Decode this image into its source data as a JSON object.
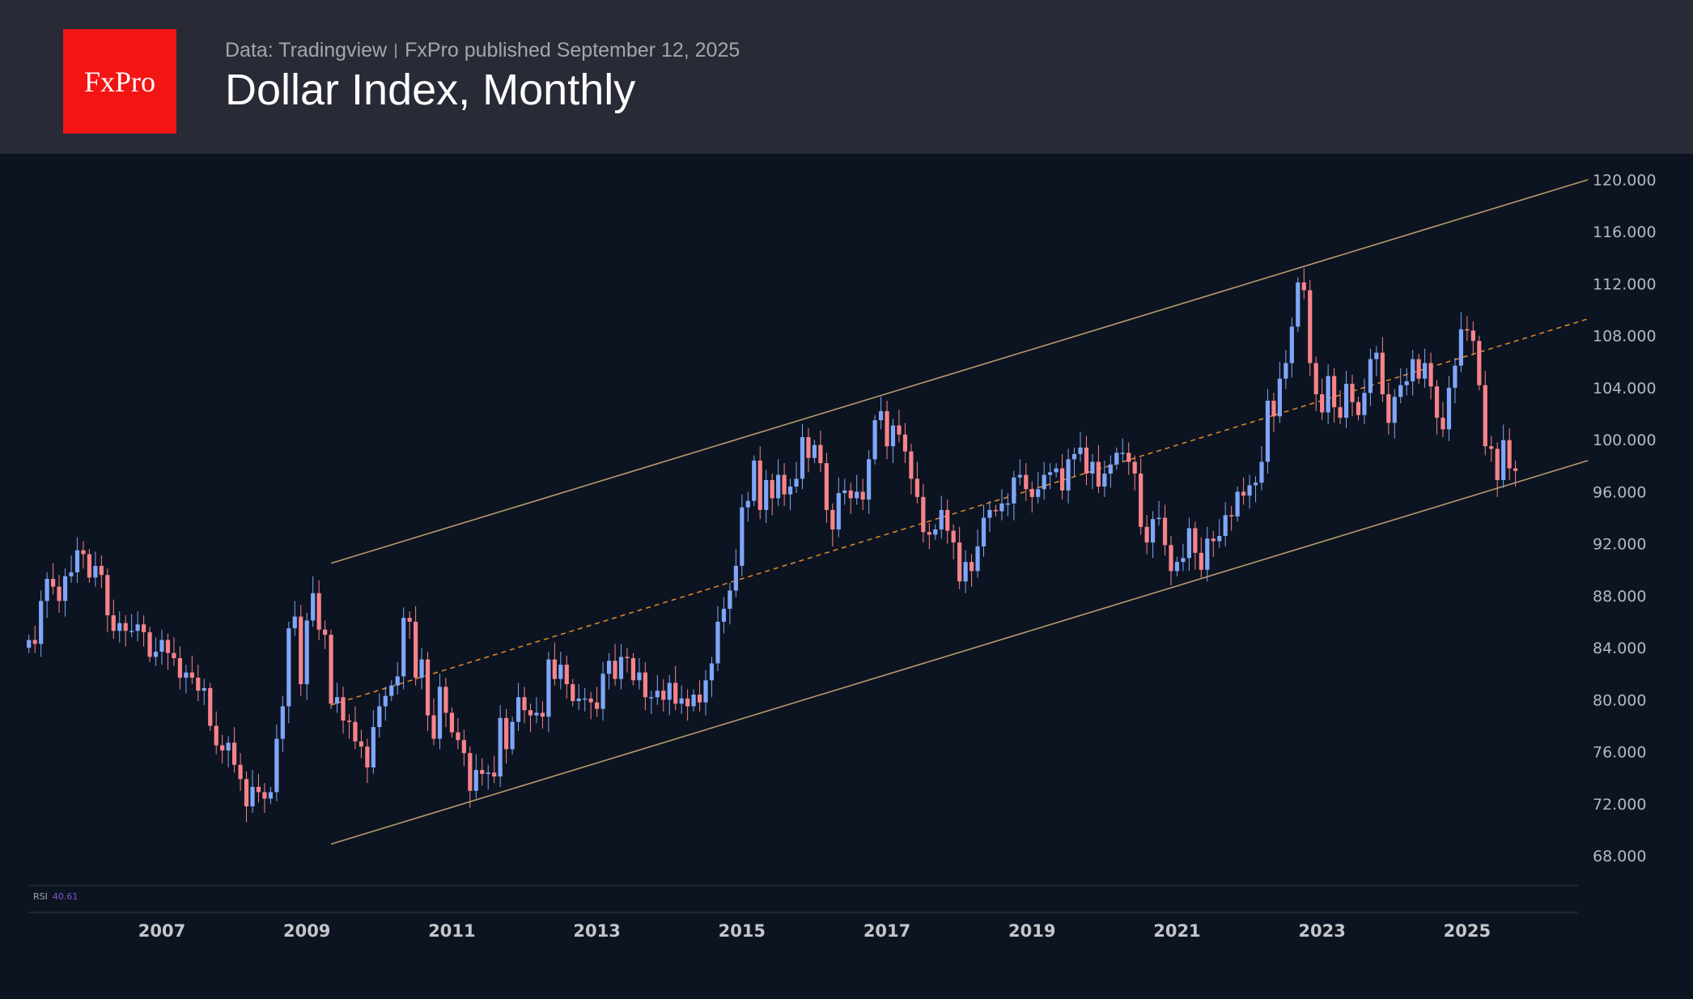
{
  "header": {
    "logo_text": "FxPro",
    "source": "Data: Tradingview",
    "published": "FxPro published September 12, 2025",
    "title": "Dollar Index, Monthly"
  },
  "indicator": {
    "name": "RSI",
    "value": "40.61"
  },
  "colors": {
    "up": "#7fa6f8",
    "down": "#f7838a",
    "channel": "#b8996c",
    "midline": "#d9852c",
    "background": "#0d1421"
  },
  "chart_data": {
    "type": "candlestick",
    "title": "Dollar Index, Monthly",
    "start_month": "2005-03",
    "interval": "monthly",
    "ylim": [
      66,
      121
    ],
    "yticks": [
      "120.000",
      "116.000",
      "112.000",
      "108.000",
      "104.000",
      "100.000",
      "96.000",
      "92.000",
      "88.000",
      "84.000",
      "80.000",
      "76.000",
      "72.000",
      "68.000"
    ],
    "xticks": [
      "2007",
      "2009",
      "2011",
      "2013",
      "2015",
      "2017",
      "2019",
      "2021",
      "2023",
      "2025"
    ],
    "closes": [
      84.6,
      84.3,
      87.6,
      89.3,
      88.7,
      87.6,
      89.5,
      89.8,
      91.5,
      91.2,
      89.4,
      90.3,
      89.6,
      86.5,
      85.3,
      85.9,
      85.3,
      85.3,
      85.8,
      85.2,
      83.3,
      83.7,
      84.6,
      83.6,
      83.2,
      81.7,
      82.1,
      81.7,
      80.7,
      80.9,
      78.0,
      76.5,
      76.1,
      76.7,
      75.0,
      73.9,
      71.8,
      73.3,
      72.9,
      72.4,
      72.9,
      77.0,
      79.5,
      85.5,
      86.4,
      81.2,
      86.1,
      88.2,
      85.4,
      85.0,
      79.7,
      80.2,
      78.4,
      78.3,
      76.8,
      76.4,
      74.8,
      77.9,
      79.5,
      80.3,
      81.1,
      81.8,
      86.3,
      86.0,
      81.7,
      83.1,
      78.8,
      77.0,
      81.0,
      79.0,
      77.5,
      76.9,
      75.9,
      73.0,
      74.6,
      74.3,
      74.4,
      74.1,
      78.6,
      76.2,
      78.3,
      80.2,
      79.2,
      78.8,
      79.0,
      78.7,
      83.1,
      81.6,
      82.7,
      81.2,
      79.9,
      80.1,
      80.1,
      79.8,
      79.3,
      82.0,
      83.0,
      81.6,
      83.3,
      83.2,
      81.5,
      82.1,
      80.2,
      80.2,
      80.7,
      80.0,
      81.3,
      79.7,
      80.1,
      79.5,
      80.4,
      79.8,
      81.5,
      82.8,
      86.0,
      87.0,
      88.4,
      90.3,
      94.8,
      95.3,
      98.4,
      94.6,
      96.9,
      95.5,
      97.3,
      95.8,
      96.4,
      97.0,
      100.2,
      98.6,
      99.6,
      98.2,
      94.6,
      93.1,
      95.9,
      96.1,
      95.5,
      96.0,
      95.4,
      98.5,
      101.5,
      102.2,
      99.5,
      101.1,
      100.4,
      99.1,
      97.0,
      95.6,
      92.9,
      92.7,
      93.1,
      94.6,
      93.0,
      92.1,
      89.1,
      90.6,
      89.9,
      91.8,
      94.0,
      94.6,
      94.5,
      95.1,
      95.1,
      97.1,
      97.3,
      96.2,
      95.6,
      96.2,
      97.3,
      97.5,
      97.8,
      96.1,
      98.5,
      98.9,
      99.4,
      97.4,
      98.3,
      96.4,
      97.4,
      98.1,
      99.0,
      99.0,
      98.3,
      97.4,
      93.3,
      92.1,
      93.9,
      94.0,
      91.9,
      89.9,
      90.6,
      90.9,
      93.2,
      91.3,
      90.0,
      92.4,
      92.2,
      92.6,
      94.2,
      94.1,
      96.0,
      95.7,
      96.5,
      96.7,
      98.3,
      103.0,
      101.8,
      104.7,
      105.9,
      108.7,
      112.1,
      111.5,
      105.9,
      103.5,
      102.1,
      104.9,
      102.5,
      101.7,
      104.3,
      102.9,
      101.9,
      103.6,
      106.2,
      106.7,
      103.5,
      101.3,
      103.3,
      104.2,
      104.5,
      106.2,
      104.7,
      105.9,
      104.1,
      101.7,
      100.8,
      104.0,
      105.7,
      108.5,
      108.4,
      107.6,
      104.2,
      99.5,
      99.3,
      96.9,
      99.97,
      97.8,
      97.6
    ],
    "channel": {
      "upper": {
        "from": [
          "2009-05",
          90.5
        ],
        "to": [
          "2026-09",
          120.0
        ]
      },
      "middle_dashed": {
        "from": [
          "2009-05",
          79.6
        ],
        "to": [
          "2026-09",
          109.3
        ]
      },
      "lower": {
        "from": [
          "2009-05",
          68.9
        ],
        "to": [
          "2026-09",
          98.4
        ]
      }
    },
    "grid": false
  }
}
